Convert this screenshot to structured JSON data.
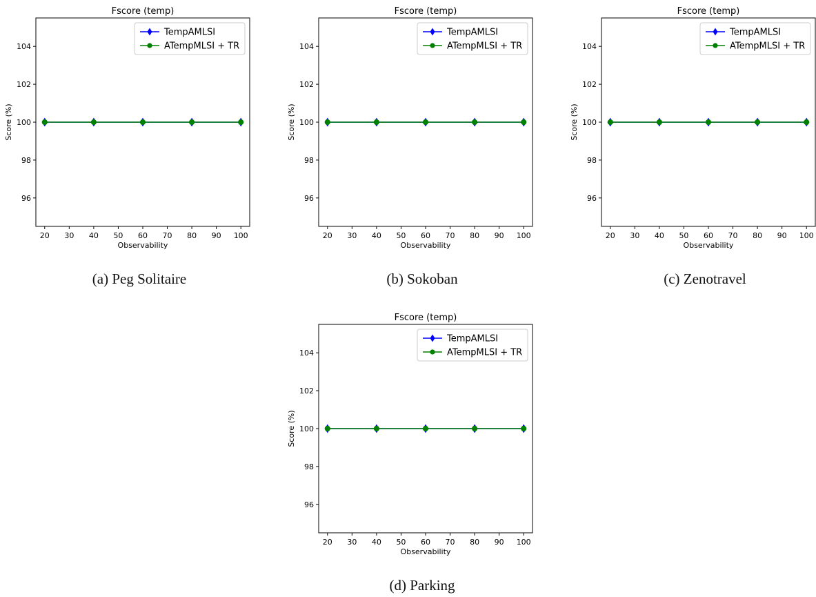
{
  "figure": {
    "captions": [
      "(a) Peg Solitaire",
      "(b) Sokoban",
      "(c) Zenotravel",
      "(d) Parking"
    ]
  },
  "colors": {
    "TempAMLSI": "#0000ff",
    "ATempMLSI + TR": "#008000"
  },
  "chart_data": [
    {
      "type": "line",
      "title": "Fscore (temp)",
      "xlabel": "Observability",
      "ylabel": "Score (%)",
      "x": [
        20,
        40,
        60,
        80,
        100
      ],
      "xticks": [
        20,
        30,
        40,
        50,
        60,
        70,
        80,
        90,
        100
      ],
      "yticks": [
        96,
        98,
        100,
        102,
        104
      ],
      "xlim": [
        16.4,
        103.6
      ],
      "ylim": [
        94.5,
        105.5
      ],
      "legend": "upper right",
      "grid": false,
      "series": [
        {
          "name": "TempAMLSI",
          "values": [
            100,
            100,
            100,
            100,
            100
          ],
          "marker": "diamond"
        },
        {
          "name": "ATempMLSI + TR",
          "values": [
            100,
            100,
            100,
            100,
            100
          ],
          "marker": "circle"
        }
      ]
    },
    {
      "type": "line",
      "title": "Fscore (temp)",
      "xlabel": "Observability",
      "ylabel": "Score (%)",
      "x": [
        20,
        40,
        60,
        80,
        100
      ],
      "xticks": [
        20,
        30,
        40,
        50,
        60,
        70,
        80,
        90,
        100
      ],
      "yticks": [
        96,
        98,
        100,
        102,
        104
      ],
      "xlim": [
        16.4,
        103.6
      ],
      "ylim": [
        94.5,
        105.5
      ],
      "legend": "upper right",
      "grid": false,
      "series": [
        {
          "name": "TempAMLSI",
          "values": [
            100,
            100,
            100,
            100,
            100
          ],
          "marker": "diamond"
        },
        {
          "name": "ATempMLSI + TR",
          "values": [
            100,
            100,
            100,
            100,
            100
          ],
          "marker": "circle"
        }
      ]
    },
    {
      "type": "line",
      "title": "Fscore (temp)",
      "xlabel": "Observability",
      "ylabel": "Score (%)",
      "x": [
        20,
        40,
        60,
        80,
        100
      ],
      "xticks": [
        20,
        30,
        40,
        50,
        60,
        70,
        80,
        90,
        100
      ],
      "yticks": [
        96,
        98,
        100,
        102,
        104
      ],
      "xlim": [
        16.4,
        103.6
      ],
      "ylim": [
        94.5,
        105.5
      ],
      "legend": "upper right",
      "grid": false,
      "series": [
        {
          "name": "TempAMLSI",
          "values": [
            100,
            100,
            100,
            100,
            100
          ],
          "marker": "diamond"
        },
        {
          "name": "ATempMLSI + TR",
          "values": [
            100,
            100,
            100,
            100,
            100
          ],
          "marker": "circle"
        }
      ]
    },
    {
      "type": "line",
      "title": "Fscore (temp)",
      "xlabel": "Observability",
      "ylabel": "Score (%)",
      "x": [
        20,
        40,
        60,
        80,
        100
      ],
      "xticks": [
        20,
        30,
        40,
        50,
        60,
        70,
        80,
        90,
        100
      ],
      "yticks": [
        96,
        98,
        100,
        102,
        104
      ],
      "xlim": [
        16.4,
        103.6
      ],
      "ylim": [
        94.5,
        105.5
      ],
      "legend": "upper right",
      "grid": false,
      "series": [
        {
          "name": "TempAMLSI",
          "values": [
            100,
            100,
            100,
            100,
            100
          ],
          "marker": "diamond"
        },
        {
          "name": "ATempMLSI + TR",
          "values": [
            100,
            100,
            100,
            100,
            100
          ],
          "marker": "circle"
        }
      ]
    }
  ]
}
